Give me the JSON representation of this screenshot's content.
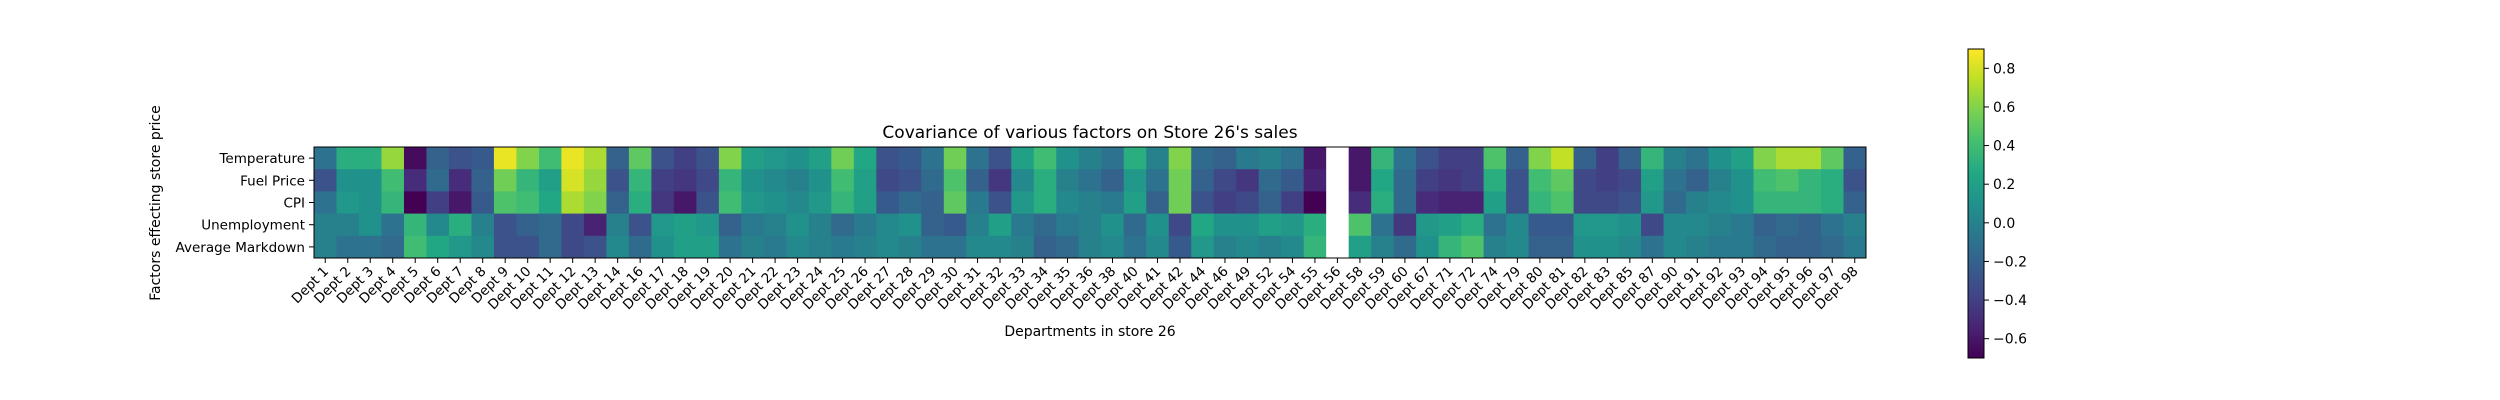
{
  "chart_data": {
    "type": "heatmap",
    "title": "Covariance of various factors on Store 26's sales",
    "xlabel": "Departments in store 26",
    "ylabel": "Factors effecting store price",
    "rows": [
      "Temperature",
      "Fuel Price",
      "CPI",
      "Unemployment",
      "Average Markdown"
    ],
    "columns": [
      "Dept 1",
      "Dept 2",
      "Dept 3",
      "Dept 4",
      "Dept 5",
      "Dept 6",
      "Dept 7",
      "Dept 8",
      "Dept 9",
      "Dept 10",
      "Dept 11",
      "Dept 12",
      "Dept 13",
      "Dept 14",
      "Dept 16",
      "Dept 17",
      "Dept 18",
      "Dept 19",
      "Dept 20",
      "Dept 21",
      "Dept 22",
      "Dept 23",
      "Dept 24",
      "Dept 25",
      "Dept 26",
      "Dept 27",
      "Dept 28",
      "Dept 29",
      "Dept 30",
      "Dept 31",
      "Dept 32",
      "Dept 33",
      "Dept 34",
      "Dept 35",
      "Dept 36",
      "Dept 38",
      "Dept 40",
      "Dept 41",
      "Dept 42",
      "Dept 44",
      "Dept 46",
      "Dept 49",
      "Dept 52",
      "Dept 54",
      "Dept 55",
      "Dept 56",
      "Dept 58",
      "Dept 59",
      "Dept 60",
      "Dept 67",
      "Dept 71",
      "Dept 72",
      "Dept 74",
      "Dept 79",
      "Dept 80",
      "Dept 81",
      "Dept 82",
      "Dept 83",
      "Dept 85",
      "Dept 87",
      "Dept 90",
      "Dept 91",
      "Dept 92",
      "Dept 93",
      "Dept 94",
      "Dept 95",
      "Dept 96",
      "Dept 97",
      "Dept 98"
    ],
    "values": [
      [
        -0.1,
        0.3,
        0.3,
        0.65,
        -0.65,
        -0.2,
        -0.3,
        -0.25,
        0.85,
        0.6,
        0.4,
        0.85,
        0.7,
        -0.2,
        0.5,
        -0.3,
        -0.4,
        -0.3,
        0.6,
        0.2,
        0.15,
        0.1,
        0.2,
        0.55,
        0.25,
        -0.3,
        -0.25,
        -0.1,
        0.55,
        -0.1,
        -0.3,
        0.2,
        0.4,
        0.1,
        0.0,
        -0.1,
        0.3,
        0.0,
        0.6,
        -0.15,
        -0.2,
        -0.05,
        0.0,
        -0.1,
        -0.6,
        null,
        -0.6,
        0.35,
        -0.1,
        -0.3,
        -0.4,
        -0.4,
        0.45,
        -0.2,
        0.6,
        0.75,
        -0.2,
        -0.4,
        -0.2,
        0.35,
        0.0,
        -0.1,
        0.1,
        0.2,
        0.6,
        0.7,
        0.7,
        0.5,
        -0.2
      ],
      [
        -0.3,
        0.1,
        0.1,
        0.4,
        -0.5,
        -0.15,
        -0.5,
        -0.2,
        0.55,
        0.35,
        0.2,
        0.8,
        0.65,
        -0.3,
        0.35,
        -0.4,
        -0.45,
        -0.35,
        0.35,
        0.1,
        0.05,
        0.0,
        0.1,
        0.4,
        0.2,
        -0.35,
        -0.3,
        -0.15,
        0.45,
        -0.2,
        -0.45,
        0.05,
        0.3,
        0.0,
        -0.1,
        -0.2,
        0.15,
        -0.1,
        0.55,
        -0.2,
        -0.35,
        -0.45,
        -0.15,
        -0.25,
        -0.55,
        null,
        -0.6,
        0.25,
        -0.15,
        -0.4,
        -0.45,
        -0.4,
        0.3,
        -0.3,
        0.4,
        0.5,
        -0.35,
        -0.4,
        -0.35,
        0.2,
        -0.1,
        -0.2,
        0.0,
        0.1,
        0.4,
        0.45,
        0.35,
        0.3,
        -0.3
      ],
      [
        -0.1,
        0.15,
        0.1,
        0.35,
        -0.7,
        -0.4,
        -0.6,
        -0.25,
        0.45,
        0.4,
        0.25,
        0.7,
        0.6,
        -0.2,
        0.3,
        -0.45,
        -0.6,
        -0.3,
        0.4,
        0.15,
        0.1,
        0.05,
        0.15,
        0.35,
        0.2,
        -0.25,
        -0.15,
        -0.2,
        0.5,
        -0.05,
        -0.3,
        0.15,
        0.3,
        0.05,
        0.0,
        -0.05,
        0.2,
        -0.2,
        0.55,
        -0.3,
        -0.4,
        -0.35,
        -0.2,
        -0.4,
        -0.7,
        null,
        -0.5,
        0.3,
        -0.15,
        -0.5,
        -0.55,
        -0.55,
        0.2,
        -0.3,
        0.35,
        0.45,
        -0.35,
        -0.35,
        -0.3,
        0.15,
        -0.15,
        0.0,
        0.05,
        0.1,
        0.35,
        0.35,
        0.35,
        0.3,
        -0.2
      ],
      [
        0.0,
        0.0,
        0.1,
        -0.1,
        0.35,
        0.05,
        0.3,
        0.0,
        -0.3,
        -0.2,
        -0.15,
        -0.35,
        -0.55,
        0.0,
        -0.3,
        0.15,
        0.2,
        0.15,
        -0.2,
        -0.05,
        0.0,
        0.1,
        0.0,
        -0.15,
        -0.05,
        0.05,
        0.1,
        -0.2,
        -0.25,
        0.0,
        0.2,
        -0.05,
        -0.15,
        -0.05,
        0.0,
        0.1,
        -0.15,
        0.1,
        -0.35,
        0.25,
        0.1,
        0.1,
        0.2,
        0.15,
        0.3,
        null,
        0.45,
        -0.1,
        -0.45,
        0.15,
        0.2,
        0.3,
        -0.1,
        0.05,
        -0.25,
        -0.25,
        0.15,
        0.15,
        0.1,
        -0.35,
        0.05,
        0.05,
        0.0,
        -0.05,
        -0.2,
        -0.15,
        -0.2,
        -0.1,
        0.0
      ],
      [
        0.0,
        -0.1,
        -0.1,
        -0.15,
        0.4,
        0.25,
        0.15,
        0.05,
        -0.3,
        -0.3,
        -0.15,
        -0.35,
        -0.3,
        0.05,
        -0.15,
        0.1,
        0.2,
        0.2,
        -0.1,
        0.0,
        -0.05,
        0.05,
        0.0,
        -0.05,
        0.0,
        0.05,
        0.0,
        -0.1,
        -0.1,
        0.05,
        0.05,
        0.0,
        -0.2,
        -0.15,
        0.0,
        0.05,
        -0.1,
        0.05,
        -0.25,
        0.15,
        0.0,
        0.05,
        0.0,
        0.05,
        0.35,
        null,
        0.2,
        0.0,
        -0.15,
        0.1,
        0.35,
        0.45,
        0.0,
        0.05,
        -0.2,
        -0.2,
        0.1,
        0.1,
        0.05,
        -0.1,
        0.05,
        0.0,
        -0.05,
        -0.05,
        -0.15,
        -0.2,
        -0.2,
        -0.15,
        -0.05
      ]
    ],
    "missing_value_color": "#ffffff",
    "colorscale": "viridis",
    "colorbar": {
      "min": -0.7,
      "max": 0.9,
      "ticks": [
        "-0.6",
        "-0.4",
        "-0.2",
        "0.0",
        "0.2",
        "0.4",
        "0.6",
        "0.8"
      ]
    }
  }
}
